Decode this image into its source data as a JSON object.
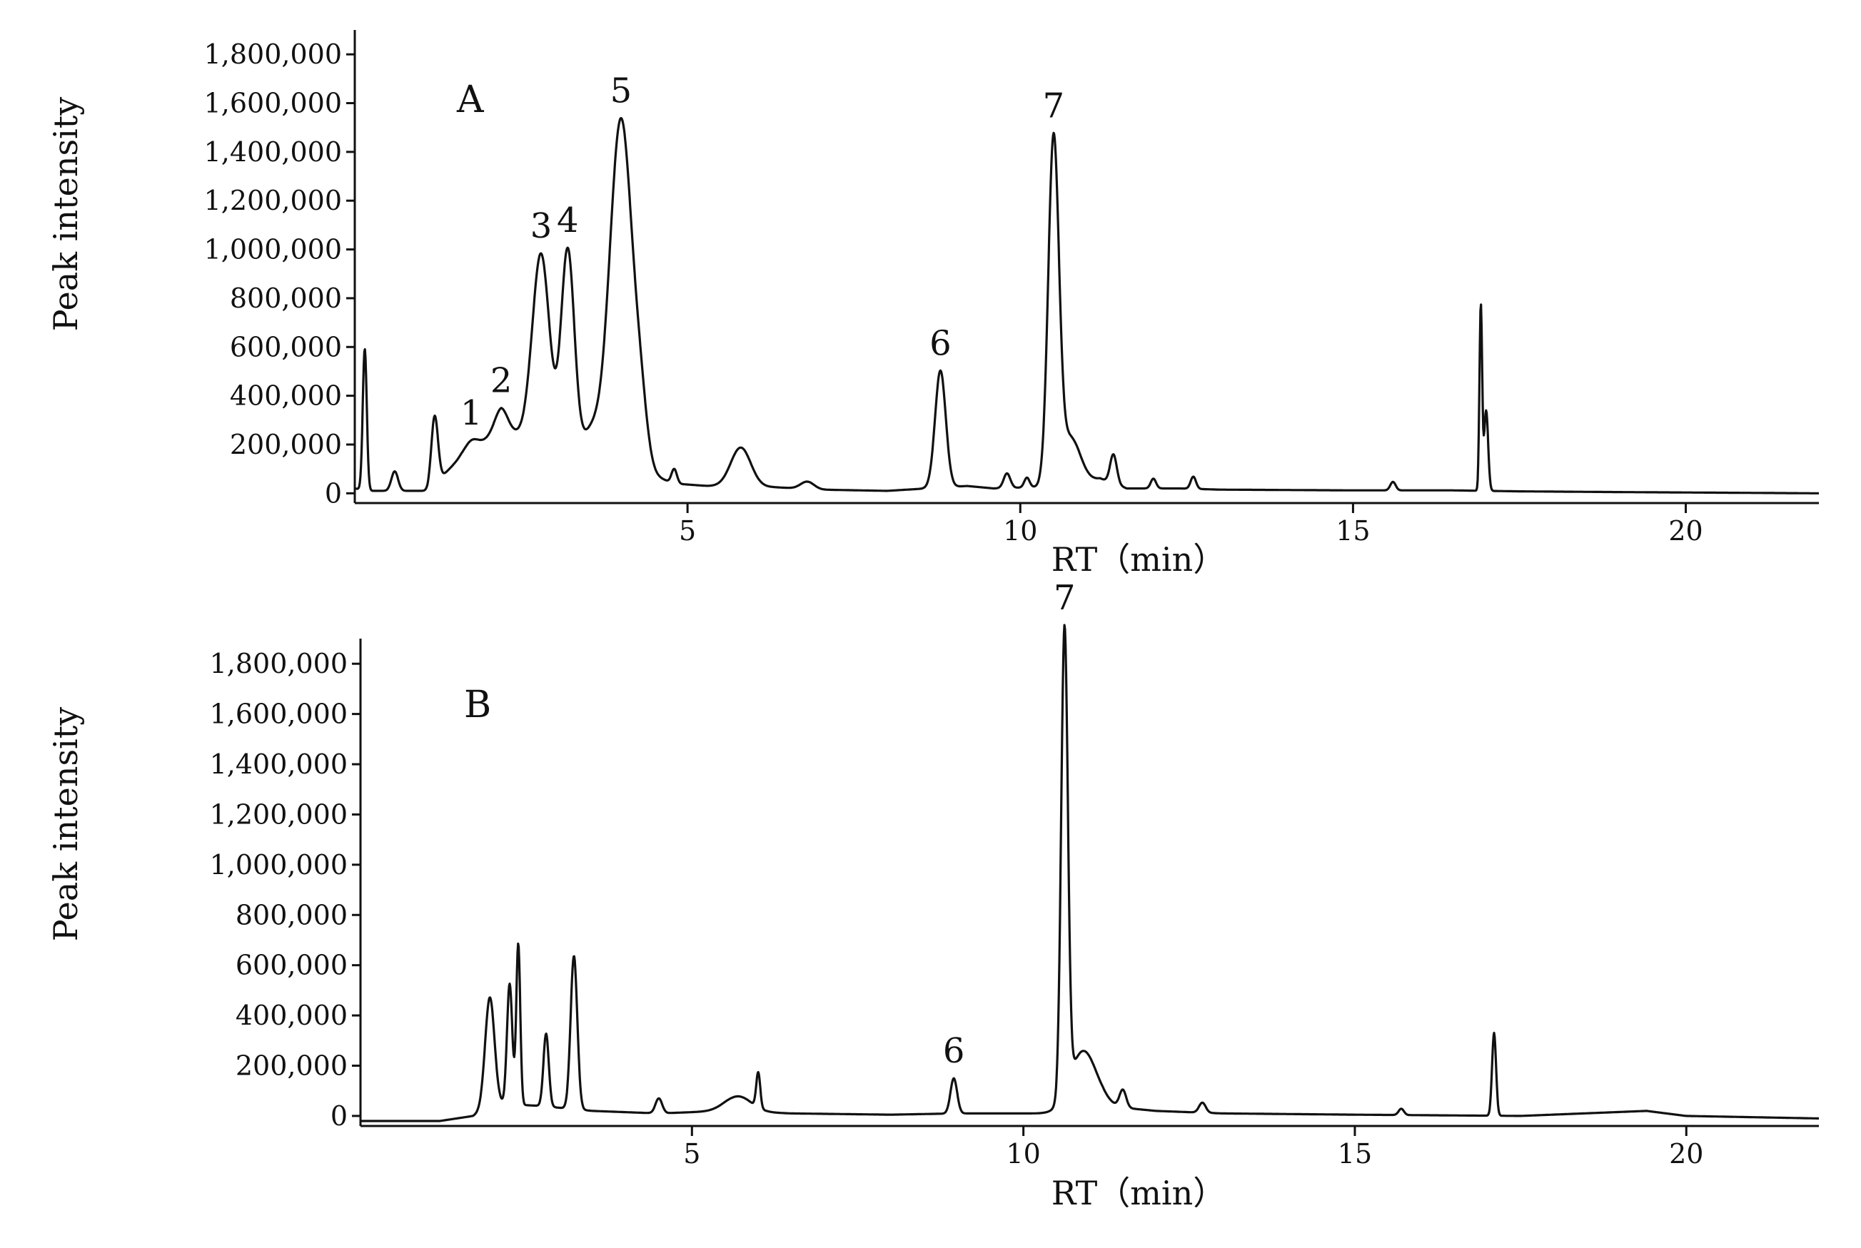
{
  "chart_data": [
    {
      "type": "line",
      "panel_label": "A",
      "xlabel": "RT（min）",
      "ylabel": "Peak intensity",
      "xlim": [
        0,
        22
      ],
      "ylim": [
        -40000,
        1900000
      ],
      "x_ticks": [
        5,
        10,
        15,
        20
      ],
      "x_tick_labels": [
        "5",
        "10",
        "15",
        "20"
      ],
      "y_ticks": [
        0,
        200000,
        400000,
        600000,
        800000,
        1000000,
        1200000,
        1400000,
        1600000,
        1800000
      ],
      "y_tick_labels": [
        "0",
        "200,000",
        "400,000",
        "600,000",
        "800,000",
        "1,000,000",
        "1,200,000",
        "1,400,000",
        "1,600,000",
        "1,800,000"
      ],
      "grid": false,
      "color": "#111111",
      "baseline": 0,
      "points": [
        [
          0,
          20000
        ],
        [
          0.2,
          10000
        ],
        [
          1.1,
          10000
        ],
        [
          1.6,
          150000
        ],
        [
          2.2,
          260000
        ],
        [
          2.6,
          230000
        ],
        [
          3.2,
          120000
        ],
        [
          3.7,
          80000
        ],
        [
          4.3,
          90000
        ],
        [
          4.8,
          40000
        ],
        [
          5.3,
          30000
        ],
        [
          6.3,
          25000
        ],
        [
          7.0,
          15000
        ],
        [
          8.0,
          10000
        ],
        [
          8.6,
          20000
        ],
        [
          9.2,
          30000
        ],
        [
          9.6,
          20000
        ],
        [
          10.2,
          25000
        ],
        [
          10.8,
          30000
        ],
        [
          11.2,
          60000
        ],
        [
          11.6,
          20000
        ],
        [
          12.4,
          20000
        ],
        [
          13.0,
          15000
        ],
        [
          15.0,
          12000
        ],
        [
          16.5,
          12000
        ],
        [
          17.5,
          8000
        ],
        [
          19.0,
          5000
        ],
        [
          22.0,
          0
        ]
      ],
      "peaks": [
        {
          "x": 0.15,
          "y": 580000,
          "w": 0.03
        },
        {
          "x": 0.6,
          "y": 80000,
          "w": 0.05
        },
        {
          "x": 1.2,
          "y": 280000,
          "w": 0.05
        },
        {
          "x": 1.75,
          "y": 40000,
          "w": 0.1,
          "label": "1"
        },
        {
          "x": 2.2,
          "y": 90000,
          "w": 0.1,
          "label": "2"
        },
        {
          "x": 2.8,
          "y": 790000,
          "w": 0.13,
          "label": "3"
        },
        {
          "x": 3.2,
          "y": 870000,
          "w": 0.1,
          "label": "4"
        },
        {
          "x": 3.55,
          "y": 150000,
          "w": 0.15
        },
        {
          "x": 4.0,
          "y": 1450000,
          "w": 0.17,
          "label": "5"
        },
        {
          "x": 4.3,
          "y": 180000,
          "w": 0.1
        },
        {
          "x": 4.8,
          "y": 60000,
          "w": 0.04
        },
        {
          "x": 5.8,
          "y": 160000,
          "w": 0.15
        },
        {
          "x": 6.8,
          "y": 30000,
          "w": 0.1
        },
        {
          "x": 8.8,
          "y": 480000,
          "w": 0.08,
          "label": "6"
        },
        {
          "x": 9.8,
          "y": 60000,
          "w": 0.05
        },
        {
          "x": 10.1,
          "y": 40000,
          "w": 0.04
        },
        {
          "x": 10.5,
          "y": 1400000,
          "w": 0.08,
          "label": "7"
        },
        {
          "x": 10.75,
          "y": 200000,
          "w": 0.15
        },
        {
          "x": 11.4,
          "y": 120000,
          "w": 0.05
        },
        {
          "x": 12.0,
          "y": 40000,
          "w": 0.04
        },
        {
          "x": 12.6,
          "y": 50000,
          "w": 0.04
        },
        {
          "x": 15.6,
          "y": 35000,
          "w": 0.04
        },
        {
          "x": 16.92,
          "y": 760000,
          "w": 0.02
        },
        {
          "x": 17.0,
          "y": 330000,
          "w": 0.03
        }
      ]
    },
    {
      "type": "line",
      "panel_label": "B",
      "xlabel": "RT（min）",
      "ylabel": "Peak intensity",
      "xlim": [
        0,
        22
      ],
      "ylim": [
        -40000,
        1900000
      ],
      "x_ticks": [
        5,
        10,
        15,
        20
      ],
      "x_tick_labels": [
        "5",
        "10",
        "15",
        "20"
      ],
      "y_ticks": [
        0,
        200000,
        400000,
        600000,
        800000,
        1000000,
        1200000,
        1400000,
        1600000,
        1800000
      ],
      "y_tick_labels": [
        "0",
        "200,000",
        "400,000",
        "600,000",
        "800,000",
        "1,000,000",
        "1,200,000",
        "1,400,000",
        "1,600,000",
        "1,800,000"
      ],
      "grid": false,
      "color": "#111111",
      "baseline": -20000,
      "points": [
        [
          0,
          -20000
        ],
        [
          1.2,
          -20000
        ],
        [
          1.7,
          0
        ],
        [
          2.0,
          50000
        ],
        [
          2.7,
          40000
        ],
        [
          3.5,
          20000
        ],
        [
          4.5,
          10000
        ],
        [
          5.5,
          20000
        ],
        [
          6.5,
          10000
        ],
        [
          8.0,
          5000
        ],
        [
          9.0,
          10000
        ],
        [
          10.4,
          10000
        ],
        [
          11.2,
          40000
        ],
        [
          12.0,
          20000
        ],
        [
          13.0,
          10000
        ],
        [
          15.0,
          5000
        ],
        [
          17.5,
          0
        ],
        [
          19.4,
          20000
        ],
        [
          20.0,
          0
        ],
        [
          22.0,
          -10000
        ]
      ],
      "peaks": [
        {
          "x": 1.95,
          "y": 430000,
          "w": 0.07
        },
        {
          "x": 2.25,
          "y": 480000,
          "w": 0.04
        },
        {
          "x": 2.38,
          "y": 640000,
          "w": 0.03
        },
        {
          "x": 2.8,
          "y": 290000,
          "w": 0.04
        },
        {
          "x": 3.22,
          "y": 610000,
          "w": 0.05
        },
        {
          "x": 4.5,
          "y": 60000,
          "w": 0.05
        },
        {
          "x": 5.7,
          "y": 60000,
          "w": 0.2
        },
        {
          "x": 6.0,
          "y": 140000,
          "w": 0.03
        },
        {
          "x": 8.95,
          "y": 140000,
          "w": 0.05,
          "label": "6"
        },
        {
          "x": 10.62,
          "y": 1850000,
          "w": 0.05,
          "label": "7"
        },
        {
          "x": 10.9,
          "y": 230000,
          "w": 0.2
        },
        {
          "x": 11.5,
          "y": 70000,
          "w": 0.05
        },
        {
          "x": 12.7,
          "y": 40000,
          "w": 0.05
        },
        {
          "x": 15.7,
          "y": 25000,
          "w": 0.04
        },
        {
          "x": 17.1,
          "y": 330000,
          "w": 0.03
        }
      ]
    }
  ]
}
